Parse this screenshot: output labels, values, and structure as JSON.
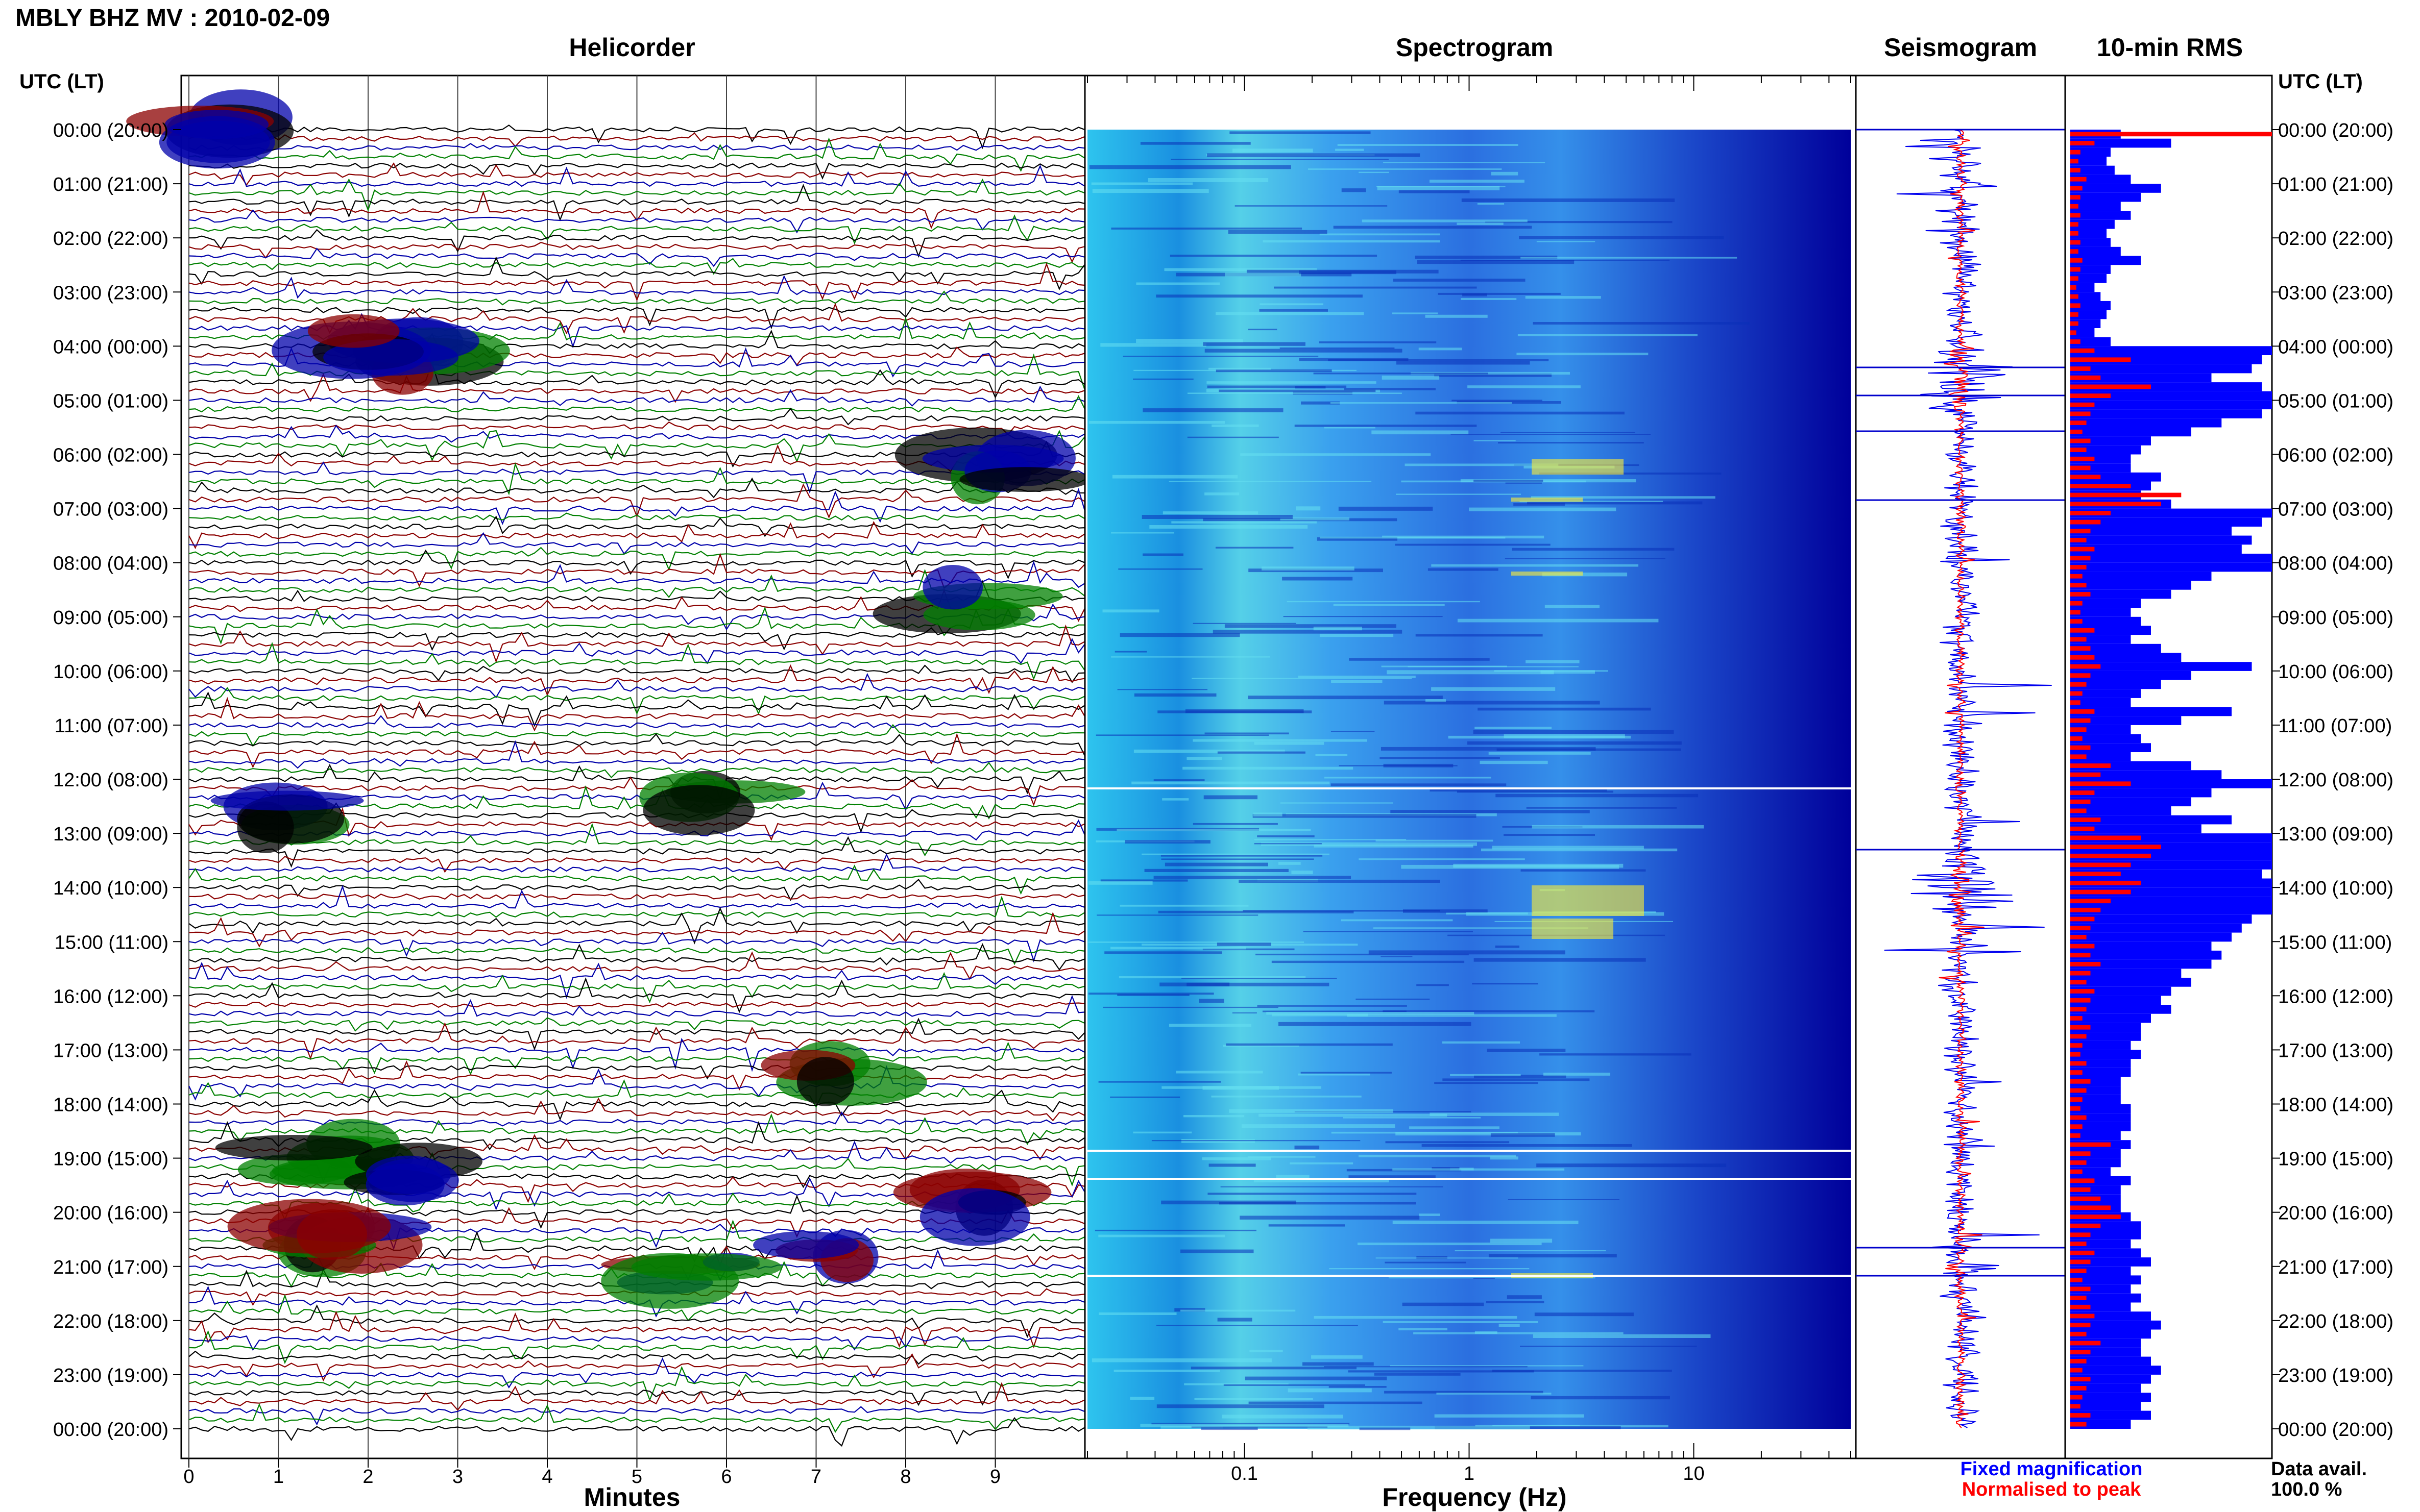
{
  "title": "MBLY BHZ MV : 2010-02-09",
  "utc_header": "UTC (LT)",
  "panels": {
    "helicorder": "Helicorder",
    "spectrogram": "Spectrogram",
    "seismogram": "Seismogram",
    "rms": "10-min RMS"
  },
  "legend": {
    "fixed": "Fixed magnification",
    "normalised": "Normalised to peak",
    "fixed_color": "#0000ff",
    "normalised_color": "#ff0000"
  },
  "data_avail": {
    "label": "Data avail.",
    "value": "100.0 %"
  },
  "colors": {
    "trace_cycle": [
      "#000000",
      "#8b0000",
      "#0000aa",
      "#008000"
    ],
    "spectrogram_low": "#00008b",
    "spectrogram_mid": "#33ccff",
    "spectrogram_high": "#ffff33"
  },
  "chart_data": [
    {
      "type": "line",
      "panel": "helicorder",
      "xlabel": "Minutes",
      "xlim": [
        0,
        10
      ],
      "x_ticks": [
        0,
        1,
        2,
        3,
        4,
        5,
        6,
        7,
        8,
        9
      ],
      "ylim_hours": [
        0,
        24
      ],
      "y_tick_labels": [
        "00:00 (20:00)",
        "01:00 (21:00)",
        "02:00 (22:00)",
        "03:00 (23:00)",
        "04:00 (00:00)",
        "05:00 (01:00)",
        "06:00 (02:00)",
        "07:00 (03:00)",
        "08:00 (04:00)",
        "09:00 (05:00)",
        "10:00 (06:00)",
        "11:00 (07:00)",
        "12:00 (08:00)",
        "13:00 (09:00)",
        "14:00 (10:00)",
        "15:00 (11:00)",
        "16:00 (12:00)",
        "17:00 (13:00)",
        "18:00 (14:00)",
        "19:00 (15:00)",
        "20:00 (16:00)",
        "21:00 (17:00)",
        "22:00 (18:00)",
        "23:00 (19:00)",
        "00:00 (20:00)"
      ],
      "lines_per_hour": 6,
      "trace_minutes": 10
    },
    {
      "type": "heatmap",
      "panel": "spectrogram",
      "xlabel": "Frequency (Hz)",
      "x_scale": "log",
      "xlim": [
        0.02,
        50
      ],
      "x_tick_labels": [
        "0.1",
        "1",
        "10"
      ],
      "x_tick_values": [
        0.1,
        1,
        10
      ],
      "ylim_hours": [
        0,
        24
      ]
    },
    {
      "type": "line",
      "panel": "seismogram",
      "ylim_hours": [
        0,
        24
      ]
    },
    {
      "type": "bar",
      "panel": "rms",
      "orientation": "horizontal",
      "ylim_hours": [
        0,
        24
      ],
      "fixed_rms_fraction": [
        0.25,
        0.5,
        0.2,
        0.18,
        0.22,
        0.3,
        0.45,
        0.35,
        0.25,
        0.3,
        0.22,
        0.18,
        0.2,
        0.25,
        0.35,
        0.2,
        0.18,
        0.12,
        0.15,
        0.2,
        0.18,
        0.15,
        0.12,
        0.2,
        1.0,
        0.95,
        0.9,
        0.7,
        0.95,
        1.0,
        1.0,
        0.95,
        0.75,
        0.6,
        0.4,
        0.35,
        0.3,
        0.3,
        0.45,
        0.4,
        0.35,
        0.5,
        1.0,
        0.95,
        0.8,
        0.9,
        0.85,
        1.0,
        1.0,
        0.7,
        0.6,
        0.5,
        0.35,
        0.3,
        0.35,
        0.4,
        0.3,
        0.45,
        0.55,
        0.9,
        0.6,
        0.45,
        0.35,
        0.3,
        0.8,
        0.55,
        0.3,
        0.35,
        0.4,
        0.3,
        0.6,
        0.75,
        1.0,
        0.7,
        0.6,
        0.5,
        0.8,
        0.65,
        1.0,
        1.0,
        1.0,
        1.0,
        0.95,
        1.0,
        1.0,
        1.0,
        1.0,
        0.9,
        0.85,
        0.8,
        0.7,
        0.75,
        0.7,
        0.55,
        0.6,
        0.5,
        0.45,
        0.5,
        0.4,
        0.35,
        0.35,
        0.3,
        0.35,
        0.3,
        0.3,
        0.25,
        0.25,
        0.25,
        0.3,
        0.3,
        0.3,
        0.25,
        0.3,
        0.25,
        0.25,
        0.2,
        0.3,
        0.25,
        0.25,
        0.25,
        0.3,
        0.35,
        0.35,
        0.3,
        0.35,
        0.4,
        0.3,
        0.35,
        0.3,
        0.35,
        0.3,
        0.4,
        0.45,
        0.4,
        0.35,
        0.35,
        0.4,
        0.45,
        0.4,
        0.35,
        0.4,
        0.35,
        0.4,
        0.3
      ],
      "normalised_rms_fraction": [
        1.0,
        0.12,
        0.05,
        0.04,
        0.05,
        0.08,
        0.06,
        0.05,
        0.04,
        0.05,
        0.04,
        0.04,
        0.05,
        0.04,
        0.06,
        0.05,
        0.04,
        0.03,
        0.04,
        0.05,
        0.04,
        0.04,
        0.03,
        0.05,
        0.12,
        0.3,
        0.1,
        0.15,
        0.4,
        0.2,
        0.12,
        0.1,
        0.08,
        0.06,
        0.1,
        0.08,
        0.12,
        0.1,
        0.15,
        0.3,
        0.55,
        0.45,
        0.2,
        0.15,
        0.1,
        0.08,
        0.12,
        0.1,
        0.08,
        0.06,
        0.08,
        0.1,
        0.06,
        0.05,
        0.06,
        0.12,
        0.08,
        0.1,
        0.12,
        0.15,
        0.1,
        0.08,
        0.06,
        0.05,
        0.12,
        0.1,
        0.08,
        0.06,
        0.1,
        0.08,
        0.2,
        0.15,
        0.3,
        0.12,
        0.1,
        0.08,
        0.15,
        0.12,
        0.35,
        0.45,
        0.4,
        0.3,
        0.25,
        0.35,
        0.3,
        0.2,
        0.15,
        0.12,
        0.1,
        0.08,
        0.12,
        0.1,
        0.15,
        0.1,
        0.08,
        0.12,
        0.1,
        0.08,
        0.06,
        0.1,
        0.08,
        0.06,
        0.05,
        0.08,
        0.06,
        0.1,
        0.08,
        0.06,
        0.05,
        0.08,
        0.06,
        0.05,
        0.2,
        0.1,
        0.08,
        0.06,
        0.12,
        0.1,
        0.15,
        0.2,
        0.25,
        0.15,
        0.1,
        0.08,
        0.12,
        0.1,
        0.08,
        0.06,
        0.1,
        0.08,
        0.1,
        0.12,
        0.1,
        0.08,
        0.15,
        0.1,
        0.08,
        0.06,
        0.1,
        0.08,
        0.06,
        0.05,
        0.1,
        0.08
      ]
    }
  ]
}
